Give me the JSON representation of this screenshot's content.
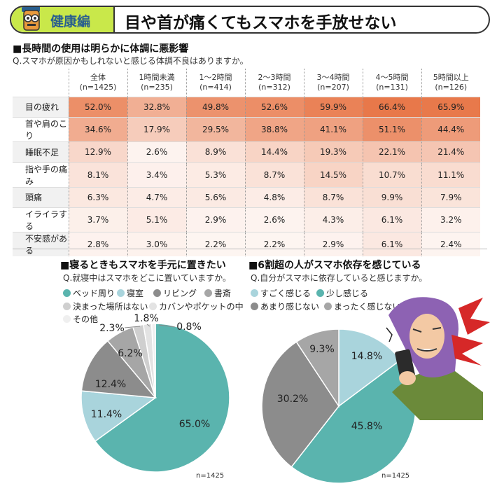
{
  "header": {
    "badge": "健康編",
    "title": "目や首が痛くてもスマホを手放せない"
  },
  "colors": {
    "teal": "#5ab4ae",
    "light_blue": "#a9d4dc",
    "gray_dark": "#8c8c8c",
    "gray_mid": "#a6a6a6",
    "gray_light": "#cfcfcf",
    "accent_green": "#c9e84a"
  },
  "section1": {
    "title": "■長時間の使用は明らかに体調に悪影響",
    "question": "Q.スマホが原因かもしれないと感じる体調不良はありますか。"
  },
  "chart_data": [
    {
      "type": "table",
      "columns": [
        {
          "name": "全体",
          "n": "(n=1425)"
        },
        {
          "name": "1時間未満",
          "n": "(n=235)"
        },
        {
          "name": "1～2時間",
          "n": "(n=414)"
        },
        {
          "name": "2～3時間",
          "n": "(n=312)"
        },
        {
          "name": "3～4時間",
          "n": "(n=207)"
        },
        {
          "name": "4～5時間",
          "n": "(n=131)"
        },
        {
          "name": "5時間以上",
          "n": "(n=126)"
        }
      ],
      "rows": [
        {
          "label": "目の疲れ",
          "values": [
            "52.0%",
            "32.8%",
            "49.8%",
            "52.6%",
            "59.9%",
            "66.4%",
            "65.9%"
          ]
        },
        {
          "label": "首や肩のこり",
          "values": [
            "34.6%",
            "17.9%",
            "29.5%",
            "38.8%",
            "41.1%",
            "51.1%",
            "44.4%"
          ]
        },
        {
          "label": "睡眠不足",
          "values": [
            "12.9%",
            "2.6%",
            "8.9%",
            "14.4%",
            "19.3%",
            "22.1%",
            "21.4%"
          ]
        },
        {
          "label": "指や手の痛み",
          "values": [
            "8.1%",
            "3.4%",
            "5.3%",
            "8.7%",
            "14.5%",
            "10.7%",
            "11.1%"
          ]
        },
        {
          "label": "頭痛",
          "values": [
            "6.3%",
            "4.7%",
            "5.6%",
            "4.8%",
            "8.7%",
            "9.9%",
            "7.9%"
          ]
        },
        {
          "label": "イライラする",
          "values": [
            "3.7%",
            "5.1%",
            "2.9%",
            "2.6%",
            "4.3%",
            "6.1%",
            "3.2%"
          ]
        },
        {
          "label": "不安感がある",
          "values": [
            "2.8%",
            "3.0%",
            "2.2%",
            "2.2%",
            "2.9%",
            "6.1%",
            "2.4%"
          ]
        }
      ]
    },
    {
      "type": "pie",
      "title": "■寝るときもスマホを手元に置きたい",
      "question": "Q.就寝中はスマホをどこに置いていますか。",
      "legend": [
        "ベッド周り",
        "寝室",
        "リビング",
        "書斎",
        "決まった場所はない",
        "カバンやポケットの中",
        "その他"
      ],
      "slices": [
        {
          "name": "ベッド周り",
          "value": 65.0,
          "label": "65.0%",
          "color": "#5ab4ae"
        },
        {
          "name": "寝室",
          "value": 11.4,
          "label": "11.4%",
          "color": "#a9d4dc"
        },
        {
          "name": "リビング",
          "value": 12.4,
          "label": "12.4%",
          "color": "#8c8c8c"
        },
        {
          "name": "書斎",
          "value": 6.2,
          "label": "6.2%",
          "color": "#a6a6a6"
        },
        {
          "name": "決まった場所はない",
          "value": 2.3,
          "label": "2.3%",
          "color": "#cfcfcf"
        },
        {
          "name": "カバンやポケットの中",
          "value": 1.8,
          "label": "1.8%",
          "color": "#e3e3e3"
        },
        {
          "name": "その他",
          "value": 0.8,
          "label": "0.8%",
          "color": "#efefef"
        }
      ],
      "n": "n=1425"
    },
    {
      "type": "pie",
      "title": "■6割超の人がスマホ依存を感じている",
      "question": "Q.自分がスマホに依存していると感じますか。",
      "legend": [
        "すごく感じる",
        "少し感じる",
        "あまり感じない",
        "まったく感じない"
      ],
      "slices": [
        {
          "name": "すごく感じる",
          "value": 14.8,
          "label": "14.8%",
          "color": "#a9d4dc"
        },
        {
          "name": "少し感じる",
          "value": 45.8,
          "label": "45.8%",
          "color": "#5ab4ae"
        },
        {
          "name": "あまり感じない",
          "value": 30.2,
          "label": "30.2%",
          "color": "#8c8c8c"
        },
        {
          "name": "まったく感じない",
          "value": 9.3,
          "label": "9.3%",
          "color": "#a6a6a6"
        }
      ],
      "n": "n=1425"
    }
  ]
}
